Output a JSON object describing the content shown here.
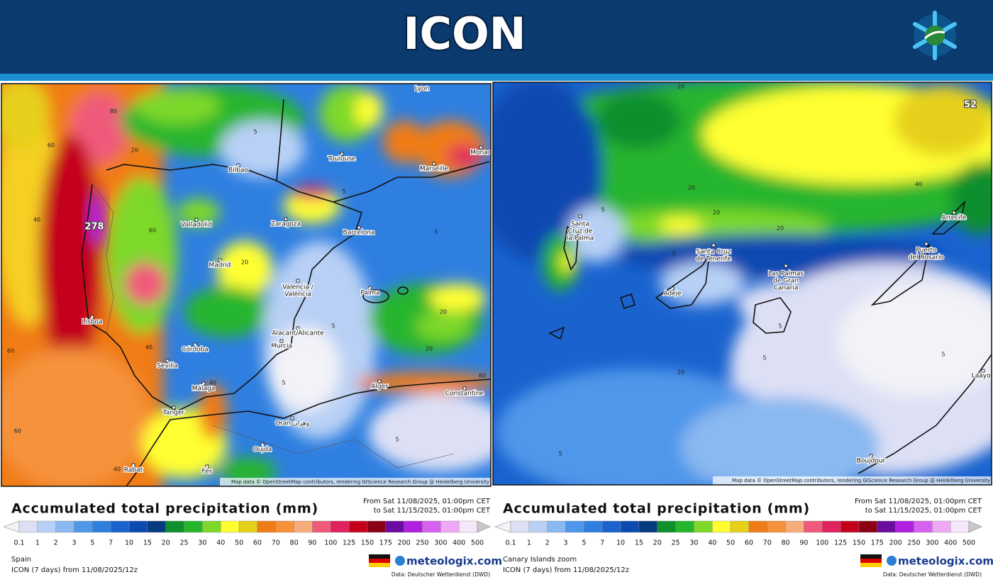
{
  "header": {
    "title": "ICON"
  },
  "color_scale": {
    "labels": [
      0.1,
      1,
      2,
      3,
      5,
      7,
      10,
      15,
      20,
      25,
      30,
      40,
      50,
      60,
      70,
      80,
      90,
      100,
      125,
      150,
      175,
      200,
      250,
      300,
      400,
      500
    ],
    "colors": [
      "#f2f2f7",
      "#dde0f5",
      "#b8d0f5",
      "#8ab8f0",
      "#4f97ea",
      "#2f7fe0",
      "#1a63cf",
      "#0b4ab0",
      "#063b7f",
      "#0f8f2e",
      "#27b52e",
      "#7dd82a",
      "#ffff30",
      "#e6d01a",
      "#f07c17",
      "#f5923a",
      "#f7ad7a",
      "#f05a7a",
      "#e0225e",
      "#c4001a",
      "#8b0014",
      "#6b0ca0",
      "#b020e0",
      "#d660f0",
      "#eea8f5",
      "#f6e8fb",
      "#c8c8c8"
    ]
  },
  "panels": [
    {
      "map": {
        "max_label": "278",
        "places": [
          [
            "Lyon"
          ],
          [
            "Toulouse"
          ],
          [
            "Marseille"
          ],
          [
            "Monac"
          ],
          [
            "Bilbao"
          ],
          [
            "Valladolid"
          ],
          [
            "Zaragoza"
          ],
          [
            "Barcelona"
          ],
          [
            "Madrid"
          ],
          [
            "Valencia /",
            "València"
          ],
          [
            "Palma"
          ],
          [
            "Alacant/Alicante"
          ],
          [
            "Murcia"
          ],
          [
            "Lisboa"
          ],
          [
            "Córdoba"
          ],
          [
            "Sevilla"
          ],
          [
            "Málaga"
          ],
          [
            "Tanger"
          ],
          [
            "Alger"
          ],
          [
            "Constantine"
          ],
          [
            "Oran وهران"
          ],
          [
            "Oujda"
          ],
          [
            "Rabat"
          ],
          [
            "Fès"
          ]
        ],
        "contour_labels": [
          "80",
          "60",
          "40",
          "20",
          "5",
          "5",
          "60",
          "40",
          "5",
          "20",
          "5",
          "20",
          "40",
          "60",
          "60",
          "40",
          "20",
          "5",
          "5",
          "60"
        ],
        "attribution": "Map data © OpenStreetMap contributors, rendering GIScience Research Group @ Heidelberg University"
      },
      "legend": {
        "title": "Accumulated total precipitation (mm)",
        "period_from": "From Sat 11/08/2025, 01:00pm CET",
        "period_to": "to Sat 11/15/2025, 01:00pm CET",
        "region": "Spain",
        "run": "ICON (7 days) from 11/08/2025/12z",
        "brand": "meteologix.com",
        "source": "Data: Deutscher Wetterdienst (DWD)"
      }
    },
    {
      "map": {
        "max_label": "52",
        "places": [
          [
            "Santa",
            "Cruz de",
            "la Palma"
          ],
          [
            "Santa Cruz",
            "de Tenerife"
          ],
          [
            "Adeje"
          ],
          [
            "Las Palmas",
            "de Gran",
            "Canaria"
          ],
          [
            "Arrecife"
          ],
          [
            "Puerto",
            "del Rosario"
          ],
          [
            "Boujdour"
          ],
          [
            "Laâyou"
          ]
        ],
        "contour_labels": [
          "20",
          "20",
          "20",
          "40",
          "20",
          "20",
          "5",
          "5",
          "5",
          "5",
          "5",
          "5"
        ],
        "attribution": "Map data © OpenStreetMap contributors, rendering GIScience Research Group @ Heidelberg University"
      },
      "legend": {
        "title": "Accumulated total precipitation (mm)",
        "period_from": "From Sat 11/08/2025, 01:00pm CET",
        "period_to": "to Sat 11/15/2025, 01:00pm CET",
        "region": "Canary Islands zoom",
        "run": "ICON (7 days) from 11/08/2025/12z",
        "brand": "meteologix.com",
        "source": "Data: Deutscher Wetterdienst (DWD)"
      }
    }
  ]
}
